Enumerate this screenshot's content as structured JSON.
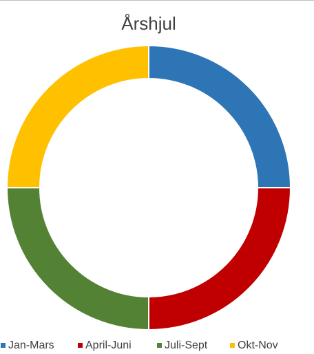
{
  "chart_data": {
    "type": "donut",
    "title": "Årshjul",
    "categories": [
      "Jan-Mars",
      "April-Juni",
      "Juli-Sept",
      "Okt-Nov"
    ],
    "values": [
      25,
      25,
      25,
      25
    ],
    "colors": [
      "#2e75b6",
      "#c00000",
      "#548235",
      "#ffc000"
    ],
    "legend": "bottom"
  }
}
